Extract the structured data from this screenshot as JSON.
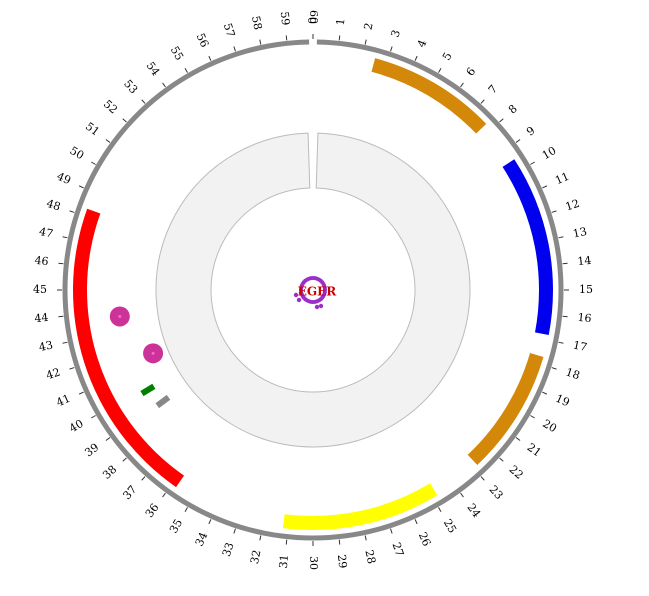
{
  "diagram": {
    "type": "circular-genome-plot",
    "scale": {
      "min": 0,
      "max": 60,
      "ticks": [
        0,
        1,
        2,
        3,
        4,
        5,
        6,
        7,
        8,
        9,
        10,
        11,
        12,
        13,
        14,
        15,
        16,
        17,
        18,
        19,
        20,
        21,
        22,
        23,
        24,
        25,
        26,
        27,
        28,
        29,
        30,
        31,
        32,
        33,
        34,
        35,
        36,
        37,
        38,
        39,
        40,
        41,
        42,
        43,
        44,
        45,
        46,
        47,
        48,
        49,
        50,
        51,
        52,
        53,
        54,
        55,
        56,
        57,
        58,
        59,
        60
      ]
    },
    "colors": {
      "ring": "#888888",
      "inner_ring_fill": "#f2f2f2",
      "inner_ring_stroke": "#bbbbbb",
      "center_label": "#cc0000",
      "center_marks": "#9a2fc9"
    },
    "arcs": [
      {
        "start": 2.5,
        "end": 7.7,
        "color": "#d4880a"
      },
      {
        "start": 9.5,
        "end": 16.8,
        "color": "#0000ee"
      },
      {
        "start": 17.7,
        "end": 22.8,
        "color": "#d4880a"
      },
      {
        "start": 24.8,
        "end": 31.2,
        "color": "#ffff00"
      },
      {
        "start": 35.8,
        "end": 48.3,
        "color": "#ff0000"
      }
    ],
    "markers": [
      {
        "shape": "circle",
        "pos": 43.7,
        "color": "#cc3399"
      },
      {
        "shape": "circle",
        "pos": 41.4,
        "color": "#cc3399"
      },
      {
        "shape": "tile",
        "pos": 39.8,
        "color": "#008000"
      },
      {
        "shape": "tile",
        "pos": 38.9,
        "color": "#888888"
      }
    ],
    "inner_ring": {
      "start": 0.3,
      "end": 59.7
    },
    "center_label": "EGER"
  }
}
